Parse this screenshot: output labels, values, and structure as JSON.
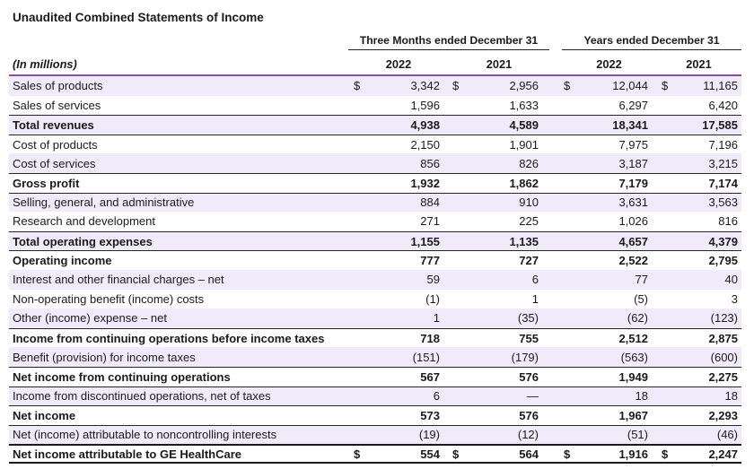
{
  "title": "Unaudited Combined Statements of Income",
  "colors": {
    "row_shade": "#F1EAFA",
    "accent_line": "#8A4EA8",
    "rule_line": "#262626",
    "text": "#1a1a1a"
  },
  "table": {
    "in_millions_label": "(In millions)",
    "groups": [
      {
        "label": "Three Months ended December 31",
        "years": [
          "2022",
          "2021"
        ]
      },
      {
        "label": "Years ended December 31",
        "years": [
          "2022",
          "2021"
        ]
      }
    ],
    "rows": [
      {
        "label": "Sales of products",
        "values": [
          "3,342",
          "2,956",
          "12,044",
          "11,165"
        ],
        "bold": false,
        "dollar": true,
        "shaded": true,
        "rule_top": false,
        "heavy_top": false,
        "heavy_bottom": false
      },
      {
        "label": "Sales of services",
        "values": [
          "1,596",
          "1,633",
          "6,297",
          "6,420"
        ],
        "bold": false,
        "dollar": false,
        "shaded": false,
        "rule_top": false,
        "heavy_top": false,
        "heavy_bottom": false
      },
      {
        "label": "Total revenues",
        "values": [
          "4,938",
          "4,589",
          "18,341",
          "17,585"
        ],
        "bold": true,
        "dollar": false,
        "shaded": true,
        "rule_top": true,
        "heavy_top": false,
        "heavy_bottom": false
      },
      {
        "label": "Cost of products",
        "values": [
          "2,150",
          "1,901",
          "7,975",
          "7,196"
        ],
        "bold": false,
        "dollar": false,
        "shaded": false,
        "rule_top": true,
        "heavy_top": false,
        "heavy_bottom": false
      },
      {
        "label": "Cost of services",
        "values": [
          "856",
          "826",
          "3,187",
          "3,215"
        ],
        "bold": false,
        "dollar": false,
        "shaded": true,
        "rule_top": false,
        "heavy_top": false,
        "heavy_bottom": false
      },
      {
        "label": "Gross profit",
        "values": [
          "1,932",
          "1,862",
          "7,179",
          "7,174"
        ],
        "bold": true,
        "dollar": false,
        "shaded": false,
        "rule_top": true,
        "heavy_top": false,
        "heavy_bottom": false
      },
      {
        "label": "Selling, general, and administrative",
        "values": [
          "884",
          "910",
          "3,631",
          "3,563"
        ],
        "bold": false,
        "dollar": false,
        "shaded": true,
        "rule_top": true,
        "heavy_top": false,
        "heavy_bottom": false
      },
      {
        "label": "Research and development",
        "values": [
          "271",
          "225",
          "1,026",
          "816"
        ],
        "bold": false,
        "dollar": false,
        "shaded": false,
        "rule_top": false,
        "heavy_top": false,
        "heavy_bottom": false
      },
      {
        "label": "Total operating expenses",
        "values": [
          "1,155",
          "1,135",
          "4,657",
          "4,379"
        ],
        "bold": true,
        "dollar": false,
        "shaded": true,
        "rule_top": true,
        "heavy_top": false,
        "heavy_bottom": false
      },
      {
        "label": "Operating income",
        "values": [
          "777",
          "727",
          "2,522",
          "2,795"
        ],
        "bold": true,
        "dollar": false,
        "shaded": false,
        "rule_top": true,
        "heavy_top": false,
        "heavy_bottom": false
      },
      {
        "label": "Interest and other financial charges – net",
        "values": [
          "59",
          "6",
          "77",
          "40"
        ],
        "bold": false,
        "dollar": false,
        "shaded": true,
        "rule_top": false,
        "heavy_top": false,
        "heavy_bottom": false
      },
      {
        "label": "Non-operating benefit (income) costs",
        "values": [
          "(1)",
          "1",
          "(5)",
          "3"
        ],
        "bold": false,
        "dollar": false,
        "shaded": false,
        "rule_top": false,
        "heavy_top": false,
        "heavy_bottom": false
      },
      {
        "label": "Other (income) expense – net",
        "values": [
          "1",
          "(35)",
          "(62)",
          "(123)"
        ],
        "bold": false,
        "dollar": false,
        "shaded": true,
        "rule_top": false,
        "heavy_top": false,
        "heavy_bottom": false
      },
      {
        "label": "Income from continuing operations before income taxes",
        "values": [
          "718",
          "755",
          "2,512",
          "2,875"
        ],
        "bold": true,
        "dollar": false,
        "shaded": false,
        "rule_top": true,
        "heavy_top": false,
        "heavy_bottom": false
      },
      {
        "label": "Benefit (provision) for income taxes",
        "values": [
          "(151)",
          "(179)",
          "(563)",
          "(600)"
        ],
        "bold": false,
        "dollar": false,
        "shaded": true,
        "rule_top": false,
        "heavy_top": false,
        "heavy_bottom": false
      },
      {
        "label": "Net income from continuing operations",
        "values": [
          "567",
          "576",
          "1,949",
          "2,275"
        ],
        "bold": true,
        "dollar": false,
        "shaded": false,
        "rule_top": true,
        "heavy_top": false,
        "heavy_bottom": false
      },
      {
        "label": "Income from discontinued operations, net of taxes",
        "values": [
          "6",
          "—",
          "18",
          "18"
        ],
        "bold": false,
        "dollar": false,
        "shaded": true,
        "rule_top": true,
        "heavy_top": false,
        "heavy_bottom": false
      },
      {
        "label": "Net income",
        "values": [
          "573",
          "576",
          "1,967",
          "2,293"
        ],
        "bold": true,
        "dollar": false,
        "shaded": false,
        "rule_top": true,
        "heavy_top": false,
        "heavy_bottom": false
      },
      {
        "label": "Net (income) attributable to noncontrolling interests",
        "values": [
          "(19)",
          "(12)",
          "(51)",
          "(46)"
        ],
        "bold": false,
        "dollar": false,
        "shaded": true,
        "rule_top": true,
        "heavy_top": false,
        "heavy_bottom": false
      },
      {
        "label": "Net income attributable to GE HealthCare",
        "values": [
          "554",
          "564",
          "1,916",
          "2,247"
        ],
        "bold": true,
        "dollar": true,
        "shaded": false,
        "rule_top": false,
        "heavy_top": true,
        "heavy_bottom": true
      }
    ]
  }
}
